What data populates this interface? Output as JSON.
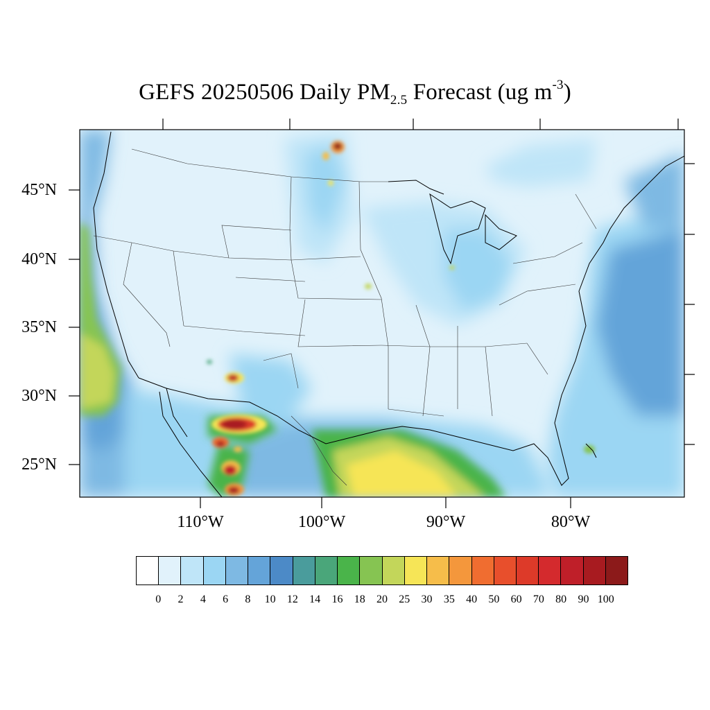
{
  "title": {
    "prefix": "GEFS 20250506 Daily PM",
    "subscript": "2.5",
    "middle": " Forecast (ug m",
    "superscript": "-3",
    "suffix": ")"
  },
  "map": {
    "projection": "Lambert conformal, contiguous United States",
    "background_color": "#e1f2fb",
    "lat_labels": [
      "45°N",
      "40°N",
      "35°N",
      "30°N",
      "25°N"
    ],
    "lon_labels": [
      "110°W",
      "100°W",
      "90°W",
      "80°W"
    ]
  },
  "colorbar": {
    "levels": [
      "0",
      "2",
      "4",
      "6",
      "8",
      "10",
      "12",
      "14",
      "16",
      "18",
      "20",
      "25",
      "30",
      "35",
      "40",
      "50",
      "60",
      "70",
      "80",
      "90",
      "100"
    ],
    "colors": [
      "#ffffff",
      "#e1f2fb",
      "#bfe5f8",
      "#9bd6f3",
      "#7eb9e3",
      "#64a4d9",
      "#4c8ac7",
      "#4a9c9c",
      "#4aa67a",
      "#4ab44a",
      "#86c452",
      "#c3d65a",
      "#f6e557",
      "#f6bd4a",
      "#f4973c",
      "#f06d30",
      "#e84f2c",
      "#dd3a29",
      "#d42a2d",
      "#bf1f29",
      "#a81b20",
      "#8c1a1a"
    ]
  }
}
